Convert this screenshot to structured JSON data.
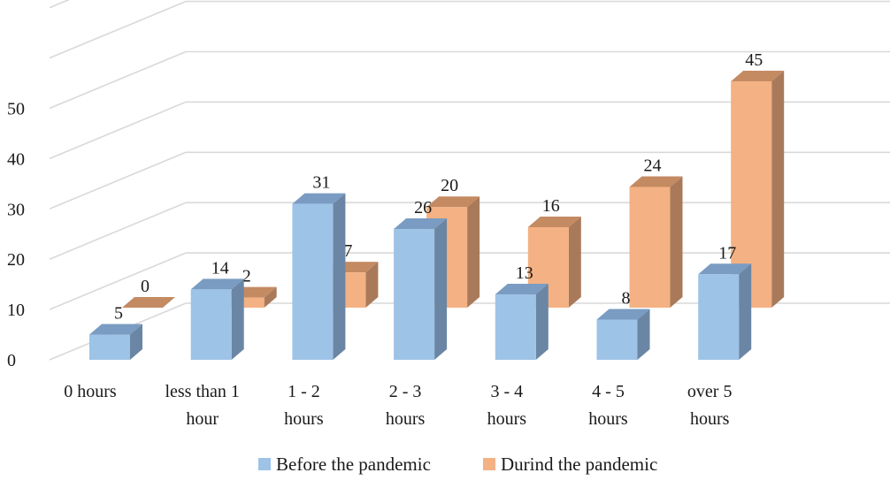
{
  "chart_data": {
    "type": "bar",
    "categories": [
      [
        "0 hours"
      ],
      [
        "less than 1",
        "hour"
      ],
      [
        "1 - 2",
        "hours"
      ],
      [
        "2 - 3",
        "hours"
      ],
      [
        "3 - 4",
        "hours"
      ],
      [
        "4 - 5",
        "hours"
      ],
      [
        "over 5",
        "hours"
      ]
    ],
    "series": [
      {
        "name": "Before the pandemic",
        "values": [
          5,
          14,
          31,
          26,
          13,
          8,
          17
        ]
      },
      {
        "name": "Durind the pandemic",
        "values": [
          0,
          2,
          7,
          20,
          16,
          24,
          45
        ]
      }
    ],
    "yticks": [
      "0",
      "10",
      "20",
      "30",
      "40",
      "50"
    ],
    "ylim": [
      0,
      60
    ],
    "grid": true,
    "legend_position": "bottom",
    "colors": {
      "before_front": "#9dc3e6",
      "before_side": "#6a86a4",
      "before_top": "#7a9cc2",
      "during_front": "#f4b183",
      "during_side": "#a97a5a",
      "during_top": "#c48a62",
      "grid": "#d9d9d9"
    }
  }
}
